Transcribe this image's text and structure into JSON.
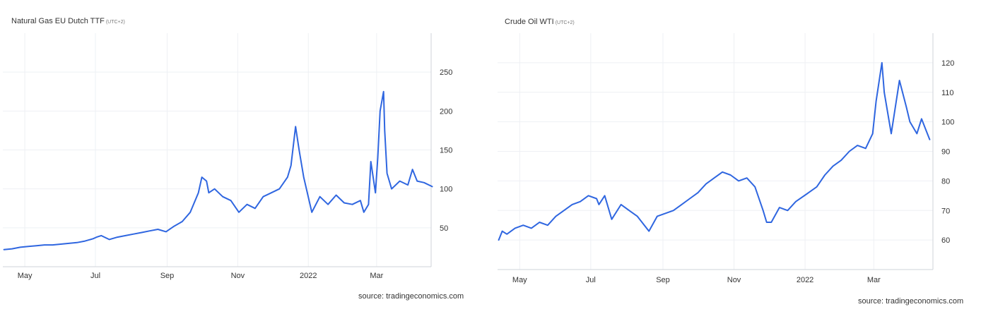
{
  "chart_data": [
    {
      "type": "line",
      "title": "Natural Gas EU Dutch TTF",
      "timezone": "(UTC+2)",
      "source": "source: tradingeconomics.com",
      "x_ticks": [
        "May",
        "Jul",
        "Sep",
        "Nov",
        "2022",
        "Mar"
      ],
      "y_ticks": [
        50,
        100,
        150,
        200,
        250
      ],
      "xlim": [
        "2021-04-12",
        "2022-04-22"
      ],
      "ylim": [
        0,
        300
      ],
      "grid": true,
      "line_color": "#2f66e0",
      "series": [
        {
          "x": [
            "2021-04-13",
            "2021-04-20",
            "2021-04-27",
            "2021-05-04",
            "2021-05-11",
            "2021-05-18",
            "2021-05-25",
            "2021-06-01",
            "2021-06-08",
            "2021-06-15",
            "2021-06-22",
            "2021-06-29",
            "2021-07-02",
            "2021-07-06",
            "2021-07-13",
            "2021-07-20",
            "2021-07-27",
            "2021-08-03",
            "2021-08-10",
            "2021-08-17",
            "2021-08-24",
            "2021-08-31",
            "2021-09-07",
            "2021-09-14",
            "2021-09-21",
            "2021-09-28",
            "2021-10-01",
            "2021-10-05",
            "2021-10-07",
            "2021-10-12",
            "2021-10-19",
            "2021-10-26",
            "2021-11-02",
            "2021-11-09",
            "2021-11-16",
            "2021-11-23",
            "2021-11-30",
            "2021-12-07",
            "2021-12-14",
            "2021-12-17",
            "2021-12-21",
            "2021-12-24",
            "2021-12-28",
            "2022-01-04",
            "2022-01-11",
            "2022-01-18",
            "2022-01-25",
            "2022-02-01",
            "2022-02-08",
            "2022-02-15",
            "2022-02-18",
            "2022-02-22",
            "2022-02-24",
            "2022-02-28",
            "2022-03-02",
            "2022-03-04",
            "2022-03-07",
            "2022-03-08",
            "2022-03-10",
            "2022-03-14",
            "2022-03-21",
            "2022-03-28",
            "2022-04-01",
            "2022-04-05",
            "2022-04-11",
            "2022-04-18"
          ],
          "values": [
            22,
            23,
            25,
            26,
            27,
            28,
            28,
            29,
            30,
            31,
            33,
            36,
            38,
            40,
            35,
            38,
            40,
            42,
            44,
            46,
            48,
            45,
            52,
            58,
            70,
            95,
            115,
            110,
            95,
            100,
            90,
            85,
            70,
            80,
            75,
            90,
            95,
            100,
            115,
            130,
            180,
            150,
            115,
            70,
            90,
            80,
            92,
            82,
            80,
            85,
            70,
            80,
            135,
            95,
            140,
            200,
            225,
            175,
            120,
            100,
            110,
            105,
            125,
            110,
            108,
            103
          ]
        }
      ]
    },
    {
      "type": "line",
      "title": "Crude Oil WTI",
      "timezone": "(UTC+2)",
      "source": "source: tradingeconomics.com",
      "x_ticks": [
        "May",
        "Jul",
        "Sep",
        "Nov",
        "2022",
        "Mar"
      ],
      "y_ticks": [
        60,
        70,
        80,
        90,
        100,
        110,
        120
      ],
      "xlim": [
        "2021-04-12",
        "2022-04-22"
      ],
      "ylim": [
        50,
        130
      ],
      "grid": true,
      "line_color": "#2f66e0",
      "series": [
        {
          "x": [
            "2021-04-13",
            "2021-04-16",
            "2021-04-20",
            "2021-04-27",
            "2021-05-04",
            "2021-05-11",
            "2021-05-18",
            "2021-05-25",
            "2021-06-01",
            "2021-06-08",
            "2021-06-15",
            "2021-06-22",
            "2021-06-29",
            "2021-07-06",
            "2021-07-08",
            "2021-07-13",
            "2021-07-19",
            "2021-07-27",
            "2021-08-03",
            "2021-08-10",
            "2021-08-20",
            "2021-08-27",
            "2021-09-03",
            "2021-09-10",
            "2021-09-17",
            "2021-09-24",
            "2021-10-01",
            "2021-10-08",
            "2021-10-15",
            "2021-10-22",
            "2021-10-29",
            "2021-11-05",
            "2021-11-12",
            "2021-11-19",
            "2021-11-26",
            "2021-11-29",
            "2021-12-03",
            "2021-12-10",
            "2021-12-17",
            "2021-12-24",
            "2022-01-04",
            "2022-01-11",
            "2022-01-18",
            "2022-01-25",
            "2022-02-01",
            "2022-02-08",
            "2022-02-15",
            "2022-02-22",
            "2022-02-28",
            "2022-03-03",
            "2022-03-08",
            "2022-03-10",
            "2022-03-16",
            "2022-03-23",
            "2022-03-29",
            "2022-04-01",
            "2022-04-07",
            "2022-04-11",
            "2022-04-14",
            "2022-04-18"
          ],
          "values": [
            60,
            63,
            62,
            64,
            65,
            64,
            66,
            65,
            68,
            70,
            72,
            73,
            75,
            74,
            72,
            75,
            67,
            72,
            70,
            68,
            63,
            68,
            69,
            70,
            72,
            74,
            76,
            79,
            81,
            83,
            82,
            80,
            81,
            78,
            70,
            66,
            66,
            71,
            70,
            73,
            76,
            78,
            82,
            85,
            87,
            90,
            92,
            91,
            96,
            107,
            120,
            110,
            96,
            114,
            105,
            100,
            96,
            101,
            98,
            94
          ]
        }
      ]
    }
  ]
}
